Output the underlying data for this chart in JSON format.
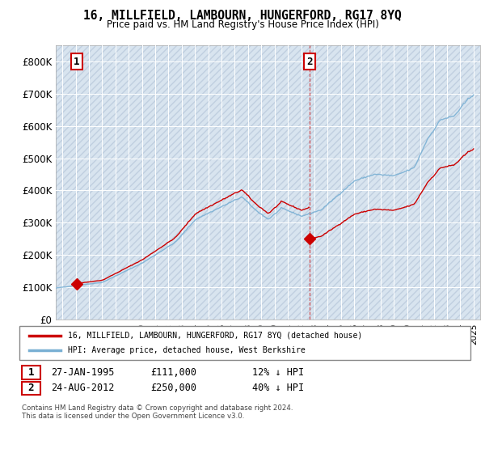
{
  "title": "16, MILLFIELD, LAMBOURN, HUNGERFORD, RG17 8YQ",
  "subtitle": "Price paid vs. HM Land Registry's House Price Index (HPI)",
  "ylim": [
    0,
    850000
  ],
  "yticks": [
    0,
    100000,
    200000,
    300000,
    400000,
    500000,
    600000,
    700000,
    800000
  ],
  "ytick_labels": [
    "£0",
    "£100K",
    "£200K",
    "£300K",
    "£400K",
    "£500K",
    "£600K",
    "£700K",
    "£800K"
  ],
  "xlim_start": 1993.5,
  "xlim_end": 2025.5,
  "background_color": "#ffffff",
  "plot_bg_color": "#e8eef5",
  "grid_color": "#ffffff",
  "sale1_x": 1995.07,
  "sale1_y": 111000,
  "sale1_label": "1",
  "sale2_x": 2012.65,
  "sale2_y": 250000,
  "sale2_label": "2",
  "sale_color": "#cc0000",
  "hpi_color": "#7ab0d4",
  "legend_label1": "16, MILLFIELD, LAMBOURN, HUNGERFORD, RG17 8YQ (detached house)",
  "legend_label2": "HPI: Average price, detached house, West Berkshire",
  "footer1": "Contains HM Land Registry data © Crown copyright and database right 2024.",
  "footer2": "This data is licensed under the Open Government Licence v3.0.",
  "table_row1": [
    "1",
    "27-JAN-1995",
    "£111,000",
    "12% ↓ HPI"
  ],
  "table_row2": [
    "2",
    "24-AUG-2012",
    "£250,000",
    "40% ↓ HPI"
  ]
}
